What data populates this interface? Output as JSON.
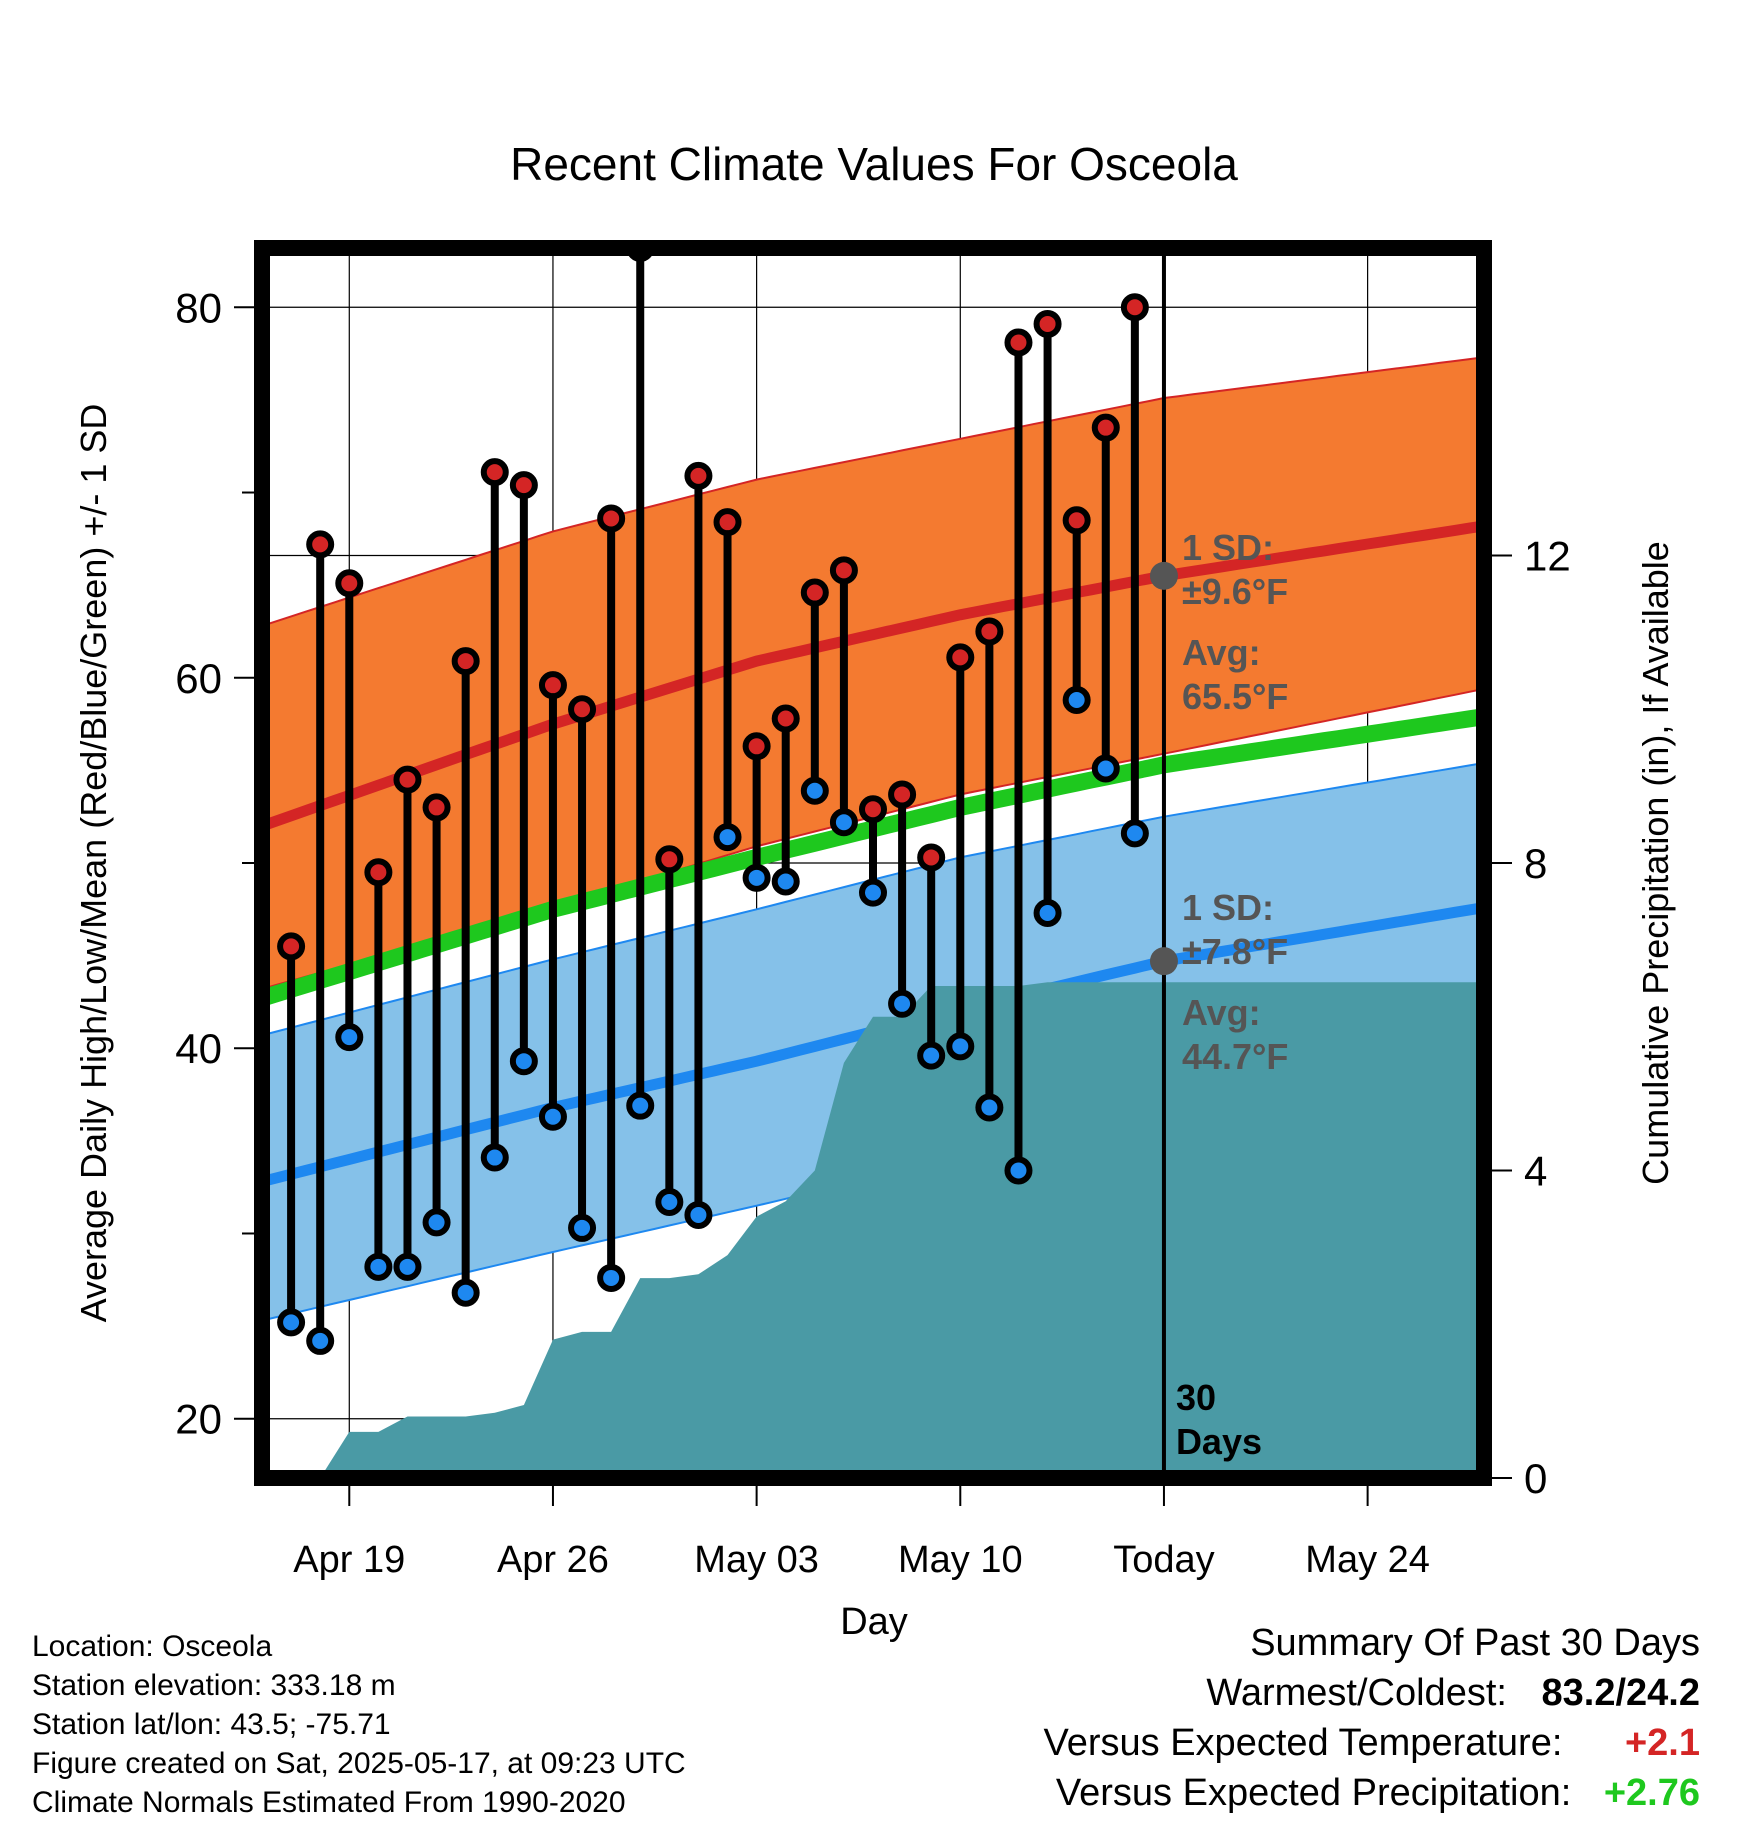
{
  "chart_data": {
    "type": "line",
    "title": "Recent Climate Values For Osceola",
    "xlabel": "Day",
    "ylabel": "Average Daily High/Low/Mean (Red/Blue/Green) +/- 1 SD",
    "y2label": "Cumulative Precipitation (in), If Available",
    "ylim": [
      16.8,
      83.2
    ],
    "y_ticks": [
      "20",
      "40",
      "60",
      "80"
    ],
    "y2lim": [
      0,
      16
    ],
    "y2_ticks": [
      "0",
      "4",
      "8",
      "12"
    ],
    "x_dates": [
      "2025-04-16",
      "2025-05-28"
    ],
    "x_tick_dates": [
      "2025-04-19",
      "2025-04-26",
      "2025-05-03",
      "2025-05-10",
      "2025-05-17",
      "2025-05-24"
    ],
    "x_tick_labels": [
      "Apr 19",
      "Apr 26",
      "May 03",
      "May 10",
      "Today",
      "May 24"
    ],
    "today": "2025-05-17",
    "window_label": [
      "30",
      "Days"
    ],
    "colors": {
      "high_band": "#f47a30",
      "high_avg": "#d42525",
      "low_band": "#85c1e9",
      "low_avg": "#1e88f0",
      "mean": "#1ec81e",
      "precip": "#4a9aa5",
      "high_dot": "#d42525",
      "low_dot": "#1e88f0",
      "marker": "#555555"
    },
    "normals": {
      "dates": [
        "2025-04-16",
        "2025-04-26",
        "2025-05-03",
        "2025-05-10",
        "2025-05-17",
        "2025-05-28"
      ],
      "high_avg": [
        52.0,
        57.5,
        60.9,
        63.4,
        65.5,
        68.2
      ],
      "high_upper": [
        62.8,
        67.9,
        70.7,
        72.9,
        75.1,
        77.3
      ],
      "high_lower": [
        43.2,
        47.6,
        50.9,
        53.7,
        55.9,
        59.4
      ],
      "mean": [
        42.7,
        47.5,
        50.3,
        53.0,
        55.3,
        57.9
      ],
      "low_avg": [
        32.8,
        36.8,
        39.3,
        42.1,
        44.7,
        47.6
      ],
      "low_upper": [
        40.7,
        44.8,
        47.5,
        50.3,
        52.5,
        55.4
      ],
      "low_lower": [
        25.3,
        29.0,
        31.5,
        34.1,
        37.0,
        40.5
      ]
    },
    "high_sd_label": [
      "1 SD:",
      "±9.6°F"
    ],
    "high_avg_label": [
      "Avg:",
      "65.5°F"
    ],
    "low_sd_label": [
      "1 SD:",
      "±7.8°F"
    ],
    "low_avg_label": [
      "Avg:",
      "44.7°F"
    ],
    "observed": {
      "dates": [
        "2025-04-17",
        "2025-04-18",
        "2025-04-19",
        "2025-04-20",
        "2025-04-21",
        "2025-04-22",
        "2025-04-23",
        "2025-04-24",
        "2025-04-25",
        "2025-04-26",
        "2025-04-27",
        "2025-04-28",
        "2025-04-29",
        "2025-04-30",
        "2025-05-01",
        "2025-05-02",
        "2025-05-03",
        "2025-05-04",
        "2025-05-05",
        "2025-05-06",
        "2025-05-07",
        "2025-05-08",
        "2025-05-09",
        "2025-05-10",
        "2025-05-11",
        "2025-05-12",
        "2025-05-13",
        "2025-05-14",
        "2025-05-15",
        "2025-05-16"
      ],
      "high": [
        45.5,
        67.2,
        65.1,
        49.5,
        54.5,
        53.0,
        60.9,
        71.1,
        70.4,
        59.6,
        58.3,
        68.6,
        83.2,
        50.2,
        70.9,
        68.4,
        56.3,
        57.8,
        64.6,
        65.8,
        52.9,
        53.7,
        50.3,
        61.1,
        62.5,
        78.1,
        79.1,
        68.5,
        73.5,
        80.0
      ],
      "low": [
        25.2,
        24.2,
        40.6,
        28.2,
        28.2,
        30.6,
        26.8,
        34.1,
        39.3,
        36.3,
        30.3,
        27.6,
        36.9,
        31.7,
        31.0,
        51.4,
        49.2,
        49.0,
        53.9,
        52.2,
        48.4,
        42.4,
        39.6,
        40.1,
        36.8,
        33.4,
        47.3,
        58.8,
        55.1,
        51.6
      ]
    },
    "precip": {
      "dates": [
        "2025-04-16",
        "2025-04-18",
        "2025-04-19",
        "2025-04-20",
        "2025-04-21",
        "2025-04-22",
        "2025-04-23",
        "2025-04-24",
        "2025-04-25",
        "2025-04-26",
        "2025-04-27",
        "2025-04-28",
        "2025-04-29",
        "2025-04-30",
        "2025-05-01",
        "2025-05-02",
        "2025-05-03",
        "2025-05-04",
        "2025-05-05",
        "2025-05-06",
        "2025-05-07",
        "2025-05-08",
        "2025-05-09",
        "2025-05-10",
        "2025-05-11",
        "2025-05-12",
        "2025-05-13",
        "2025-05-28"
      ],
      "values": [
        0,
        0,
        0.6,
        0.6,
        0.8,
        0.8,
        0.8,
        0.85,
        0.95,
        1.8,
        1.9,
        1.9,
        2.6,
        2.6,
        2.65,
        2.9,
        3.4,
        3.6,
        4.0,
        5.4,
        6.0,
        6.0,
        6.4,
        6.4,
        6.4,
        6.4,
        6.45,
        6.45
      ]
    }
  },
  "footer": {
    "location": "Location: Osceola",
    "elevation": "Station elevation: 333.18 m",
    "latlon": "Station lat/lon: 43.5; -75.71",
    "created": "Figure created on Sat, 2025-05-17, at 09:23 UTC",
    "normals": "Climate Normals Estimated From 1990-2020"
  },
  "summary": {
    "title": "Summary Of Past 30 Days",
    "warm_cold_label": "Warmest/Coldest:",
    "warm_cold_value": "83.2/24.2",
    "temp_label": "Versus Expected Temperature:",
    "temp_value": "+2.1",
    "temp_color": "#d42525",
    "precip_label": "Versus Expected Precipitation:",
    "precip_value": "+2.76",
    "precip_color": "#1ec81e"
  }
}
